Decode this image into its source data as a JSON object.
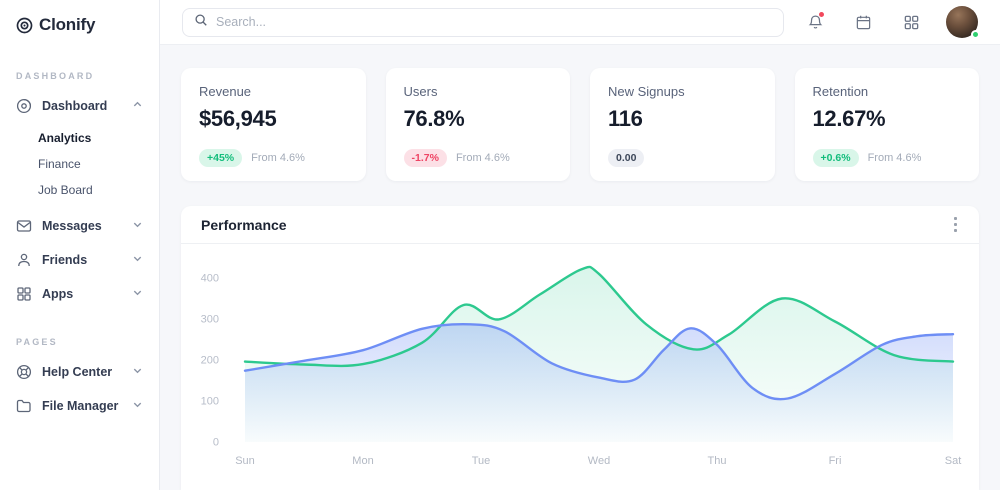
{
  "sidebar": {
    "logo_text": "Clonify",
    "section1_label": "DASHBOARD",
    "section2_label": "PAGES",
    "items": {
      "dashboard": "Dashboard",
      "analytics": "Analytics",
      "finance": "Finance",
      "job_board": "Job Board",
      "messages": "Messages",
      "friends": "Friends",
      "apps": "Apps",
      "help_center": "Help Center",
      "file_manager": "File Manager"
    }
  },
  "topbar": {
    "search_placeholder": "Search...",
    "icons": [
      "bell-icon",
      "calendar-icon",
      "apps-grid-icon",
      "user-avatar"
    ],
    "notification_dot_color": "#f2495c",
    "status_dot_color": "#2fcf6f"
  },
  "stats": [
    {
      "title": "Revenue",
      "value": "$56,945",
      "badge": "+45%",
      "badge_type": "positive",
      "note": "From 4.6%"
    },
    {
      "title": "Users",
      "value": "76.8%",
      "badge": "-1.7%",
      "badge_type": "negative",
      "note": "From 4.6%"
    },
    {
      "title": "New Signups",
      "value": "116",
      "badge": "0.00",
      "badge_type": "neutral",
      "note": ""
    },
    {
      "title": "Retention",
      "value": "12.67%",
      "badge": "+0.6%",
      "badge_type": "positive",
      "note": "From 4.6%"
    }
  ],
  "performance": {
    "title": "Performance"
  },
  "chart_data": {
    "type": "area",
    "title": "Performance",
    "categories": [
      "Sun",
      "Mon",
      "Tue",
      "Wed",
      "Thu",
      "Fri",
      "Sat"
    ],
    "yticks": [
      0,
      100,
      200,
      300,
      400
    ],
    "ylim": [
      0,
      440
    ],
    "grid": false,
    "legend": "none",
    "series": [
      {
        "name": "green-series",
        "color": "#2dc98f",
        "points": [
          [
            0,
            196
          ],
          [
            0.5,
            189
          ],
          [
            1,
            190
          ],
          [
            1.5,
            242
          ],
          [
            1.85,
            334
          ],
          [
            2.15,
            299
          ],
          [
            2.5,
            360
          ],
          [
            2.85,
            421
          ],
          [
            3,
            410
          ],
          [
            3.4,
            287
          ],
          [
            3.8,
            226
          ],
          [
            4.1,
            262
          ],
          [
            4.55,
            350
          ],
          [
            5,
            294
          ],
          [
            5.5,
            212
          ],
          [
            6,
            196
          ]
        ]
      },
      {
        "name": "blue-series",
        "color": "#6e8ef5",
        "points": [
          [
            0,
            174
          ],
          [
            0.5,
            198
          ],
          [
            1,
            224
          ],
          [
            1.5,
            276
          ],
          [
            1.9,
            287
          ],
          [
            2.2,
            270
          ],
          [
            2.6,
            192
          ],
          [
            3,
            157
          ],
          [
            3.3,
            152
          ],
          [
            3.55,
            225
          ],
          [
            3.77,
            277
          ],
          [
            4,
            237
          ],
          [
            4.3,
            132
          ],
          [
            4.6,
            106
          ],
          [
            5,
            166
          ],
          [
            5.4,
            237
          ],
          [
            5.7,
            258
          ],
          [
            6,
            263
          ]
        ]
      }
    ]
  },
  "colors": {
    "accent_green": "#2dc98f",
    "accent_blue": "#6e8ef5",
    "positive_badge": "#13bd7c",
    "negative_badge": "#ee4464"
  }
}
